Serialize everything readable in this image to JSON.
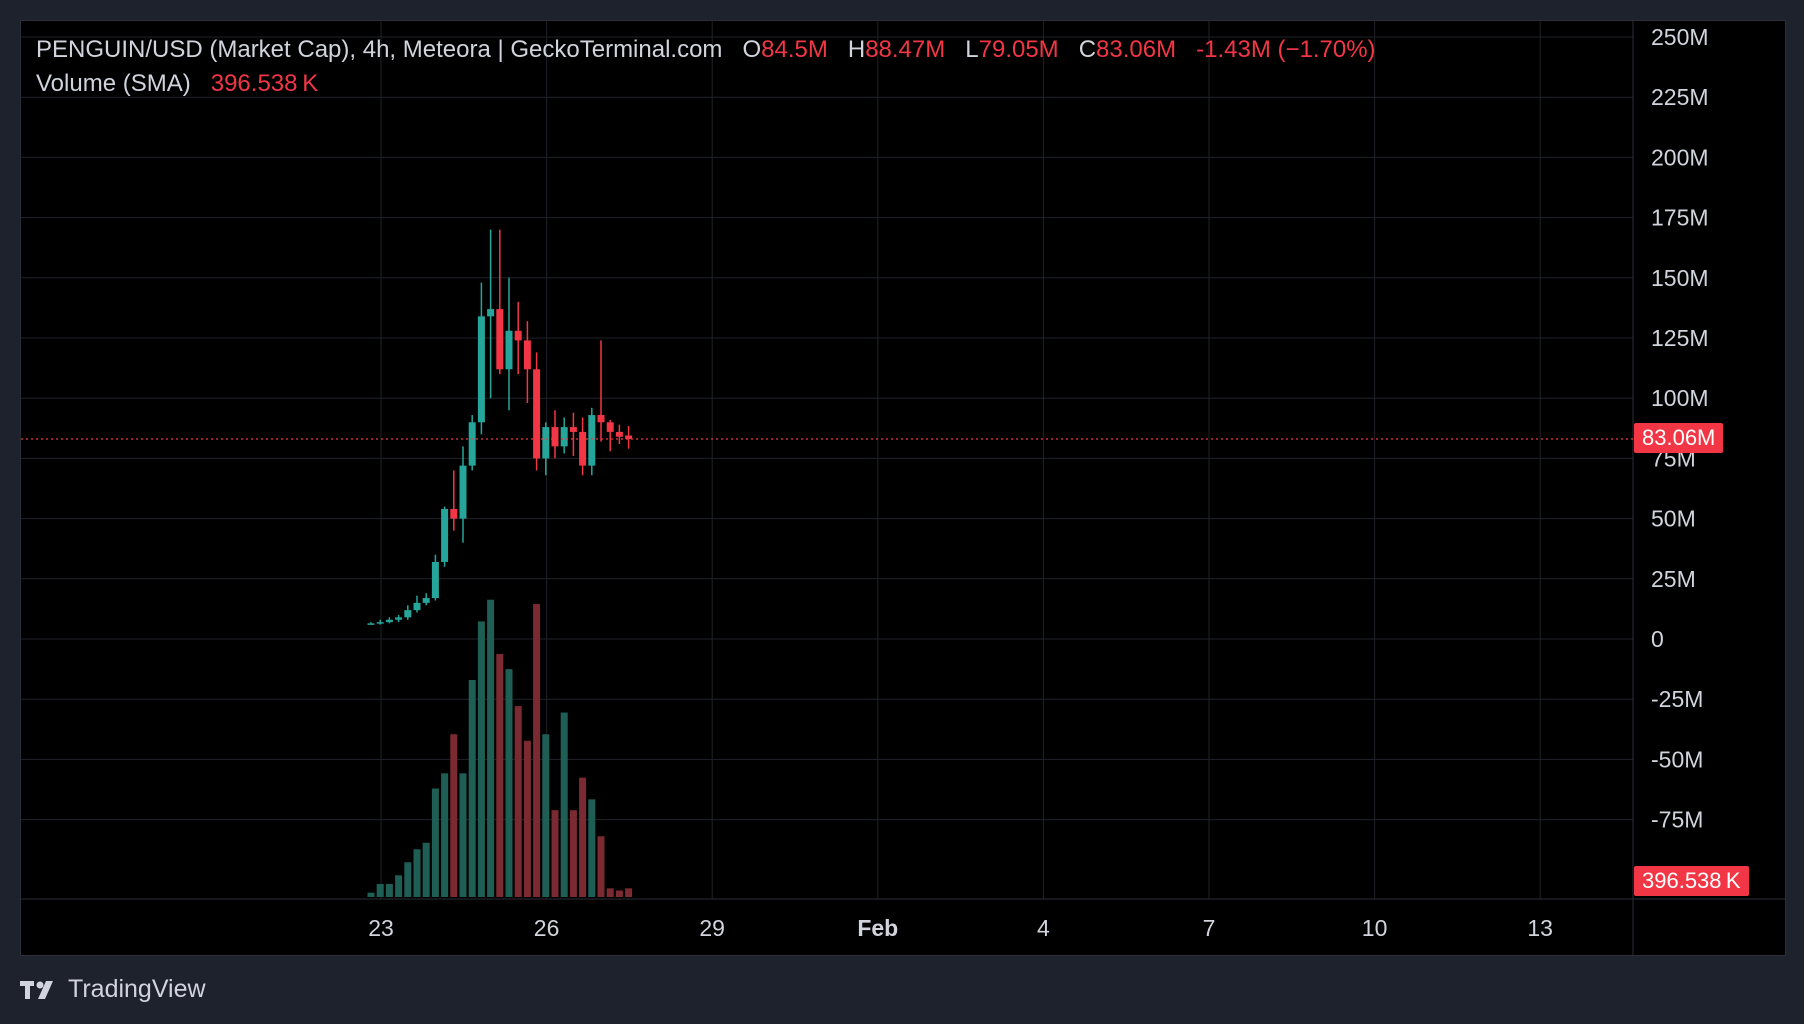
{
  "legend": {
    "title": "PENGUIN/USD (Market Cap), 4h, Meteora | GeckoTerminal.com",
    "o_label": "O",
    "o_value": "84.5M",
    "h_label": "H",
    "h_value": "88.47M",
    "l_label": "L",
    "l_value": "79.05M",
    "c_label": "C",
    "c_value": "83.06M",
    "change": "-1.43M (−1.70%)",
    "volume_label": "Volume (SMA)",
    "volume_value": "396.538 K"
  },
  "price_tag": "83.06M",
  "volume_tag": "396.538 K",
  "brand": "TradingView",
  "colors": {
    "up": "#26a69a",
    "down": "#f23645",
    "up_vol": "#1e5e55",
    "down_vol": "#7a2a30",
    "grid": "#1f2229",
    "text": "#d1d4dc"
  },
  "chart_data": {
    "type": "candlestick",
    "y_ticks": [
      "250M",
      "225M",
      "200M",
      "175M",
      "150M",
      "125M",
      "100M",
      "75M",
      "50M",
      "25M",
      "0",
      "-25M",
      "-50M",
      "-75M"
    ],
    "ylim": [
      -100,
      250
    ],
    "x_ticks": [
      "23",
      "26",
      "29",
      "Feb",
      "4",
      "7",
      "10",
      "13"
    ],
    "last_price": 83.06,
    "candles": [
      {
        "o": 6,
        "h": 7,
        "l": 6,
        "c": 6.5
      },
      {
        "o": 6.5,
        "h": 8,
        "l": 6,
        "c": 7
      },
      {
        "o": 7,
        "h": 9,
        "l": 6.5,
        "c": 8
      },
      {
        "o": 8,
        "h": 10,
        "l": 7,
        "c": 9
      },
      {
        "o": 9,
        "h": 14,
        "l": 8,
        "c": 12
      },
      {
        "o": 12,
        "h": 18,
        "l": 11,
        "c": 15
      },
      {
        "o": 15,
        "h": 19,
        "l": 14,
        "c": 17
      },
      {
        "o": 17,
        "h": 35,
        "l": 16,
        "c": 32
      },
      {
        "o": 32,
        "h": 55,
        "l": 30,
        "c": 54
      },
      {
        "o": 54,
        "h": 70,
        "l": 45,
        "c": 50
      },
      {
        "o": 50,
        "h": 80,
        "l": 40,
        "c": 72
      },
      {
        "o": 72,
        "h": 93,
        "l": 70,
        "c": 90
      },
      {
        "o": 90,
        "h": 148,
        "l": 85,
        "c": 134
      },
      {
        "o": 134,
        "h": 170,
        "l": 100,
        "c": 137
      },
      {
        "o": 137,
        "h": 170,
        "l": 110,
        "c": 112
      },
      {
        "o": 112,
        "h": 150,
        "l": 95,
        "c": 128
      },
      {
        "o": 128,
        "h": 140,
        "l": 110,
        "c": 124
      },
      {
        "o": 124,
        "h": 132,
        "l": 98,
        "c": 112
      },
      {
        "o": 112,
        "h": 119,
        "l": 70,
        "c": 75
      },
      {
        "o": 75,
        "h": 90,
        "l": 68,
        "c": 88
      },
      {
        "o": 88,
        "h": 95,
        "l": 75,
        "c": 80
      },
      {
        "o": 80,
        "h": 92,
        "l": 77,
        "c": 88
      },
      {
        "o": 88,
        "h": 94,
        "l": 76,
        "c": 86
      },
      {
        "o": 86,
        "h": 92,
        "l": 68,
        "c": 72
      },
      {
        "o": 72,
        "h": 96,
        "l": 68,
        "c": 93
      },
      {
        "o": 93,
        "h": 124,
        "l": 82,
        "c": 90
      },
      {
        "o": 90,
        "h": 91,
        "l": 78,
        "c": 86
      },
      {
        "o": 86,
        "h": 89,
        "l": 81,
        "c": 84
      },
      {
        "o": 84.5,
        "h": 88.47,
        "l": 79.05,
        "c": 83.06
      }
    ],
    "volumes": [
      0.02,
      0.06,
      0.06,
      0.1,
      0.16,
      0.22,
      0.25,
      0.5,
      0.57,
      0.75,
      0.57,
      1.0,
      1.27,
      1.37,
      1.12,
      1.05,
      0.88,
      0.72,
      1.35,
      0.75,
      0.4,
      0.85,
      0.4,
      0.55,
      0.45,
      0.28,
      0.04,
      0.03,
      0.04
    ]
  }
}
